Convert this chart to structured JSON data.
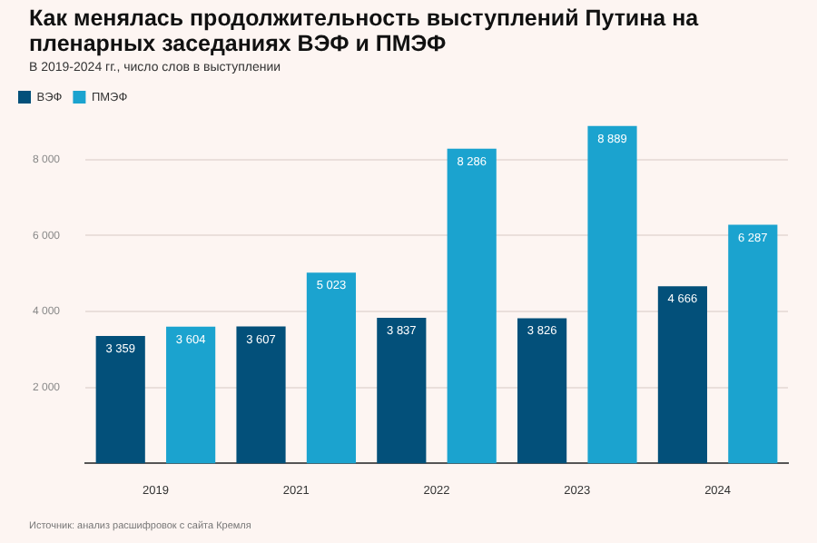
{
  "chart_data": {
    "type": "bar",
    "title": "Как менялась продолжительность выступлений Путина на пленарных заседаниях ВЭФ и ПМЭФ",
    "subtitle": "В 2019-2024 гг., число слов в выступлении",
    "categories": [
      "2019",
      "2021",
      "2022",
      "2023",
      "2024"
    ],
    "series": [
      {
        "name": "ВЭФ",
        "color": "#03507a",
        "values": [
          3359,
          3607,
          3837,
          3826,
          4666
        ],
        "value_labels": [
          "3 359",
          "3 607",
          "3 837",
          "3 826",
          "4 666"
        ]
      },
      {
        "name": "ПМЭФ",
        "color": "#1ba3cf",
        "values": [
          3604,
          5023,
          8286,
          8889,
          6287
        ],
        "value_labels": [
          "3 604",
          "5 023",
          "8 286",
          "8 889",
          "6 287"
        ]
      }
    ],
    "ylim": [
      0,
      9000
    ],
    "yticks": [
      {
        "value": 2000,
        "label": "2 000"
      },
      {
        "value": 4000,
        "label": "4 000"
      },
      {
        "value": 6000,
        "label": "6 000"
      },
      {
        "value": 8000,
        "label": "8 000"
      }
    ],
    "grid": "y",
    "legend": "top left",
    "annotations": [
      "Источник: анализ расшифровок с сайта Кремля"
    ]
  }
}
